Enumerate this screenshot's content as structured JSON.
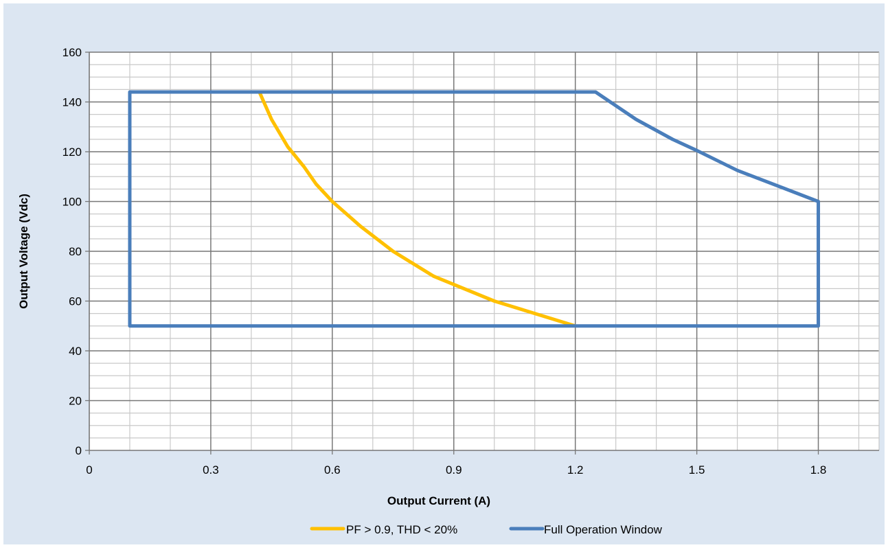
{
  "chart_data": {
    "type": "line",
    "title": "",
    "xlabel": "Output Current (A)",
    "ylabel": "Output Voltage (Vdc)",
    "xlim": [
      0,
      1.95
    ],
    "ylim": [
      0,
      160
    ],
    "x_ticks": [
      0,
      0.3,
      0.6,
      0.9,
      1.2,
      1.5,
      1.8
    ],
    "x_tick_labels": [
      "0",
      "0.3",
      "0.6",
      "0.9",
      "1.2",
      "1.5",
      "1.8"
    ],
    "y_ticks": [
      0,
      20,
      40,
      60,
      80,
      100,
      120,
      140,
      160
    ],
    "y_tick_labels": [
      "0",
      "20",
      "40",
      "60",
      "80",
      "100",
      "120",
      "140",
      "160"
    ],
    "grid": true,
    "legend_position": "bottom",
    "series": [
      {
        "name": "PF > 0.9, THD < 20%",
        "color": "#FFC000",
        "points": [
          [
            0.42,
            144
          ],
          [
            0.45,
            133
          ],
          [
            0.49,
            122
          ],
          [
            0.53,
            114
          ],
          [
            0.56,
            107
          ],
          [
            0.6,
            100
          ],
          [
            0.67,
            90
          ],
          [
            0.75,
            80
          ],
          [
            0.85,
            70
          ],
          [
            1.0,
            60
          ],
          [
            1.1,
            55
          ],
          [
            1.2,
            50
          ]
        ]
      },
      {
        "name": "Full Operation Window",
        "color": "#4A7EBB",
        "points": [
          [
            0.1,
            50
          ],
          [
            0.1,
            144
          ],
          [
            1.25,
            144
          ],
          [
            1.35,
            133
          ],
          [
            1.44,
            125
          ],
          [
            1.5,
            120.5
          ],
          [
            1.6,
            112.5
          ],
          [
            1.8,
            100
          ],
          [
            1.8,
            50
          ],
          [
            0.1,
            50
          ]
        ]
      }
    ]
  }
}
